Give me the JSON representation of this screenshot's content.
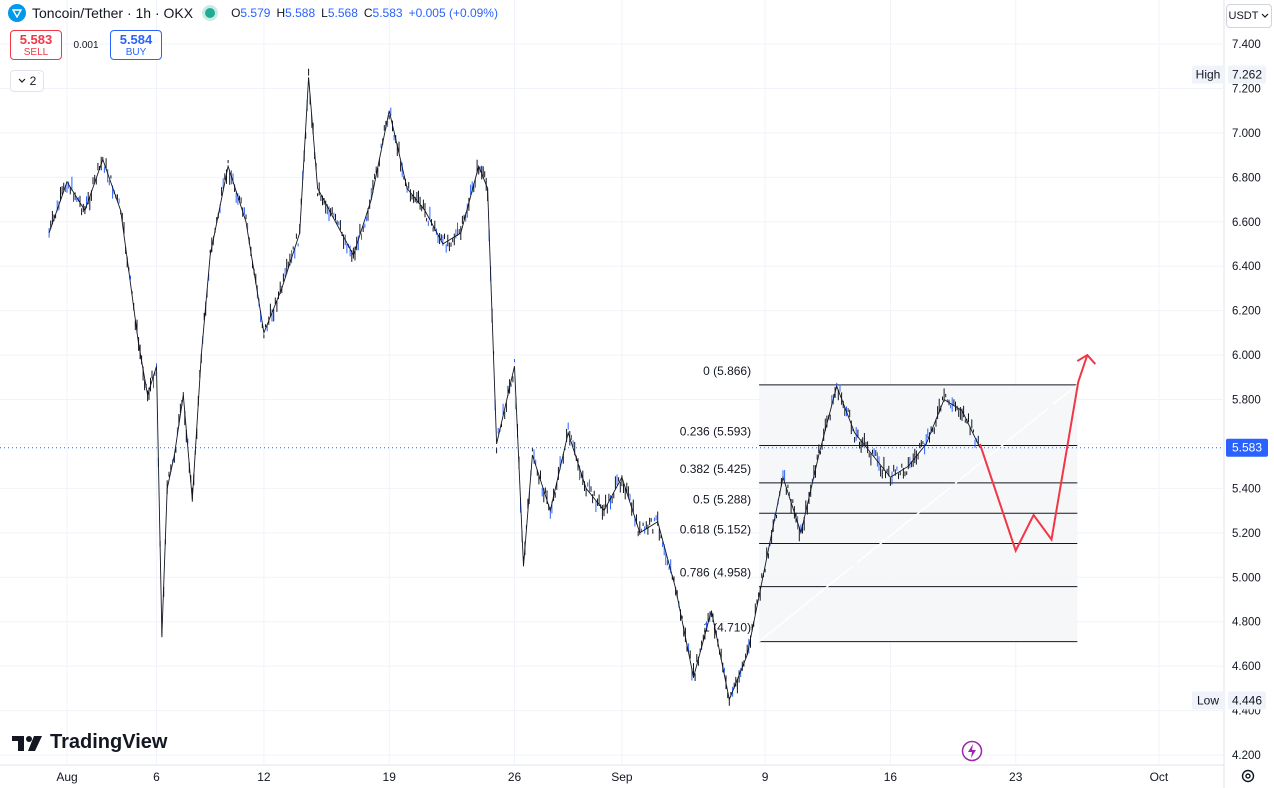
{
  "header": {
    "title": "Toncoin/Tether · 1h · OKX",
    "ohlc": {
      "o_label": "O",
      "o": "5.579",
      "h_label": "H",
      "h": "5.588",
      "l_label": "L",
      "l": "5.568",
      "c_label": "C",
      "c": "5.583",
      "change": "+0.005 (+0.09%)"
    }
  },
  "trade": {
    "sell_price": "5.583",
    "sell_label": "SELL",
    "spread": "0.001",
    "buy_price": "5.584",
    "buy_label": "BUY"
  },
  "indicators_toggle": "2",
  "currency_button": "USDT",
  "brand": "TradingView",
  "icons": [
    "ton-icon",
    "chevron-down-icon",
    "tradingview-logo",
    "gear-icon",
    "lightning-icon"
  ],
  "colors": {
    "candle": "#131722",
    "wick_blue": "#2962ff",
    "arrow": "#f23645",
    "price_label": "#2962ff",
    "fib_line": "#131722"
  },
  "chart_data": {
    "type": "line",
    "symbol": "Toncoin/Tether",
    "interval": "1h",
    "exchange": "OKX",
    "y_axis_ticks": [
      "7.400",
      "7.200",
      "7.000",
      "6.800",
      "6.600",
      "6.400",
      "6.200",
      "6.000",
      "5.800",
      "5.600",
      "5.400",
      "5.200",
      "5.000",
      "4.800",
      "4.600",
      "4.400",
      "4.200"
    ],
    "x_axis_ticks": [
      "Aug",
      "6",
      "12",
      "19",
      "26",
      "Sep",
      "9",
      "16",
      "23",
      "Oct"
    ],
    "ylim": [
      4.2,
      7.4
    ],
    "y_scale": "linear",
    "price_path": [
      {
        "x": "Jul 31",
        "y": 6.55
      },
      {
        "x": "Aug 1",
        "y": 6.78
      },
      {
        "x": "Aug 2",
        "y": 6.65
      },
      {
        "x": "Aug 3",
        "y": 6.88
      },
      {
        "x": "Aug 4",
        "y": 6.65
      },
      {
        "x": "Aug 5",
        "y": 6.05
      },
      {
        "x": "Aug 5.5",
        "y": 5.82
      },
      {
        "x": "Aug 6",
        "y": 5.95
      },
      {
        "x": "Aug 6.3",
        "y": 4.74
      },
      {
        "x": "Aug 6.6",
        "y": 5.4
      },
      {
        "x": "Aug 7",
        "y": 5.55
      },
      {
        "x": "Aug 7.5",
        "y": 5.82
      },
      {
        "x": "Aug 8",
        "y": 5.35
      },
      {
        "x": "Aug 8.5",
        "y": 6.0
      },
      {
        "x": "Aug 9",
        "y": 6.45
      },
      {
        "x": "Aug 10",
        "y": 6.85
      },
      {
        "x": "Aug 11",
        "y": 6.6
      },
      {
        "x": "Aug 12",
        "y": 6.1
      },
      {
        "x": "Aug 13",
        "y": 6.3
      },
      {
        "x": "Aug 14",
        "y": 6.55
      },
      {
        "x": "Aug 14.5",
        "y": 7.25
      },
      {
        "x": "Aug 15",
        "y": 6.75
      },
      {
        "x": "Aug 16",
        "y": 6.6
      },
      {
        "x": "Aug 17",
        "y": 6.45
      },
      {
        "x": "Aug 18",
        "y": 6.7
      },
      {
        "x": "Aug 19",
        "y": 7.1
      },
      {
        "x": "Aug 20",
        "y": 6.75
      },
      {
        "x": "Aug 21",
        "y": 6.65
      },
      {
        "x": "Aug 22",
        "y": 6.5
      },
      {
        "x": "Aug 23",
        "y": 6.55
      },
      {
        "x": "Aug 24",
        "y": 6.85
      },
      {
        "x": "Aug 24.5",
        "y": 6.75
      },
      {
        "x": "Aug 25",
        "y": 5.6
      },
      {
        "x": "Aug 26",
        "y": 5.95
      },
      {
        "x": "Aug 26.5",
        "y": 5.05
      },
      {
        "x": "Aug 27",
        "y": 5.55
      },
      {
        "x": "Aug 28",
        "y": 5.3
      },
      {
        "x": "Aug 29",
        "y": 5.65
      },
      {
        "x": "Aug 30",
        "y": 5.4
      },
      {
        "x": "Aug 31",
        "y": 5.3
      },
      {
        "x": "Sep 1",
        "y": 5.45
      },
      {
        "x": "Sep 2",
        "y": 5.2
      },
      {
        "x": "Sep 3",
        "y": 5.25
      },
      {
        "x": "Sep 4",
        "y": 4.95
      },
      {
        "x": "Sep 5",
        "y": 4.55
      },
      {
        "x": "Sep 6",
        "y": 4.85
      },
      {
        "x": "Sep 7",
        "y": 4.45
      },
      {
        "x": "Sep 8",
        "y": 4.65
      },
      {
        "x": "Sep 9",
        "y": 5.05
      },
      {
        "x": "Sep 10",
        "y": 5.45
      },
      {
        "x": "Sep 11",
        "y": 5.2
      },
      {
        "x": "Sep 12",
        "y": 5.55
      },
      {
        "x": "Sep 13",
        "y": 5.86
      },
      {
        "x": "Sep 14",
        "y": 5.65
      },
      {
        "x": "Sep 15",
        "y": 5.55
      },
      {
        "x": "Sep 16",
        "y": 5.45
      },
      {
        "x": "Sep 17",
        "y": 5.5
      },
      {
        "x": "Sep 18",
        "y": 5.6
      },
      {
        "x": "Sep 19",
        "y": 5.8
      },
      {
        "x": "Sep 20",
        "y": 5.75
      },
      {
        "x": "Sep 21",
        "y": 5.583
      }
    ],
    "fib_retracement": {
      "levels": [
        {
          "label": "0 (5.866)",
          "ratio": 0,
          "price": 5.866
        },
        {
          "label": "0.236 (5.593)",
          "ratio": 0.236,
          "price": 5.593
        },
        {
          "label": "0.382 (5.425)",
          "ratio": 0.382,
          "price": 5.425
        },
        {
          "label": "0.5 (5.288)",
          "ratio": 0.5,
          "price": 5.288
        },
        {
          "label": "0.618 (5.152)",
          "ratio": 0.618,
          "price": 5.152
        },
        {
          "label": "0.786 (4.958)",
          "ratio": 0.786,
          "price": 4.958
        },
        {
          "label": "1 (4.710)",
          "ratio": 1,
          "price": 4.71
        }
      ],
      "x_start": "Sep 9",
      "x_end": "Sep 27"
    },
    "projection_path": [
      {
        "x": "Sep 21",
        "y": 5.6
      },
      {
        "x": "Sep 23",
        "y": 5.12
      },
      {
        "x": "Sep 24",
        "y": 5.28
      },
      {
        "x": "Sep 25",
        "y": 5.17
      },
      {
        "x": "Sep 26.5",
        "y": 5.88
      },
      {
        "x": "Sep 27",
        "y": 6.0
      }
    ],
    "price_labels": {
      "high_label": "High",
      "high": "7.262",
      "current": "5.583",
      "low_label": "Low",
      "low": "4.446"
    },
    "grid": true
  }
}
